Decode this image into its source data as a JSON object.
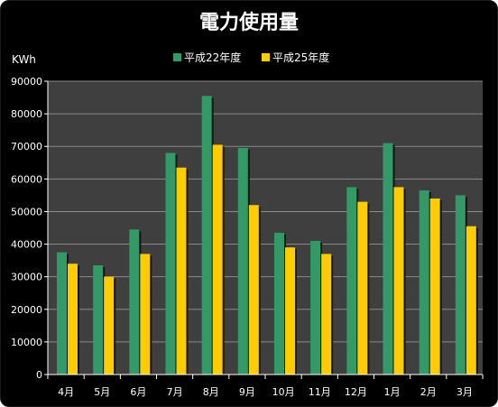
{
  "chart_data": {
    "type": "bar",
    "title": "電力使用量",
    "ylabel": "KWh",
    "xlabel": "",
    "ylim": [
      0,
      90000
    ],
    "ytick_step": 10000,
    "grid": true,
    "legend_position": "top",
    "categories": [
      "4月",
      "5月",
      "6月",
      "7月",
      "8月",
      "9月",
      "10月",
      "11月",
      "12月",
      "1月",
      "2月",
      "3月"
    ],
    "series": [
      {
        "name": "平成22年度",
        "color": "#339966",
        "values": [
          37500,
          33500,
          44500,
          68000,
          85500,
          69500,
          43500,
          41000,
          57500,
          71000,
          56500,
          55000
        ]
      },
      {
        "name": "平成25年度",
        "color": "#FFCC00",
        "values": [
          34000,
          30000,
          37000,
          63500,
          70500,
          52000,
          39000,
          37000,
          53000,
          57500,
          54000,
          45500
        ]
      }
    ],
    "colors": {
      "background": "#000000",
      "plot_area": "#3f3f3f",
      "gridline": "#8a8a8a",
      "text": "#ffffff"
    }
  }
}
